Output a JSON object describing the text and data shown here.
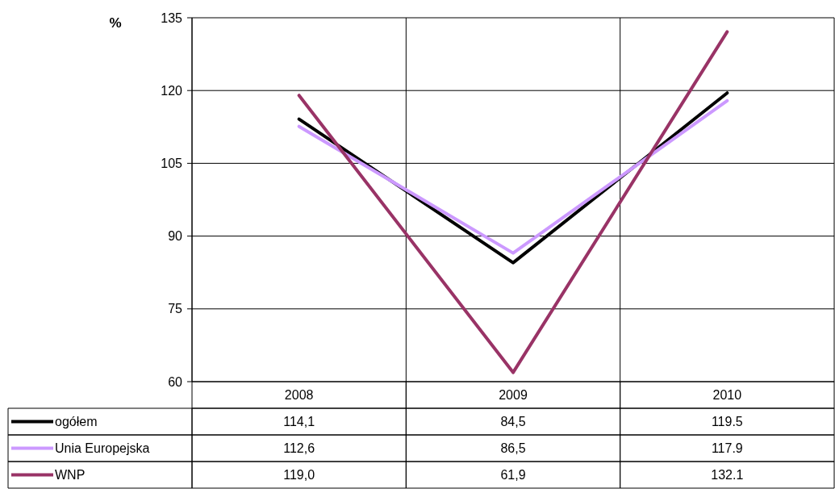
{
  "chart_data": {
    "type": "line",
    "ylabel": "%",
    "categories": [
      "2008",
      "2009",
      "2010"
    ],
    "series": [
      {
        "name": "ogółem",
        "color": "#000000",
        "values": [
          114.1,
          84.5,
          119.5
        ],
        "value_labels": [
          "114,1",
          "84,5",
          "119.5"
        ]
      },
      {
        "name": "Unia Europejska",
        "color": "#cc99ff",
        "values": [
          112.6,
          86.5,
          117.9
        ],
        "value_labels": [
          "112,6",
          "86,5",
          "117.9"
        ]
      },
      {
        "name": "WNP",
        "color": "#993366",
        "values": [
          119.0,
          61.9,
          132.1
        ],
        "value_labels": [
          "119,0",
          "61,9",
          "132.1"
        ]
      }
    ],
    "ylim": [
      60,
      135
    ],
    "yticks": [
      60,
      75,
      90,
      105,
      120,
      135
    ],
    "grid": true,
    "legend": "bottom",
    "marker": "none",
    "line_style": "solid"
  }
}
